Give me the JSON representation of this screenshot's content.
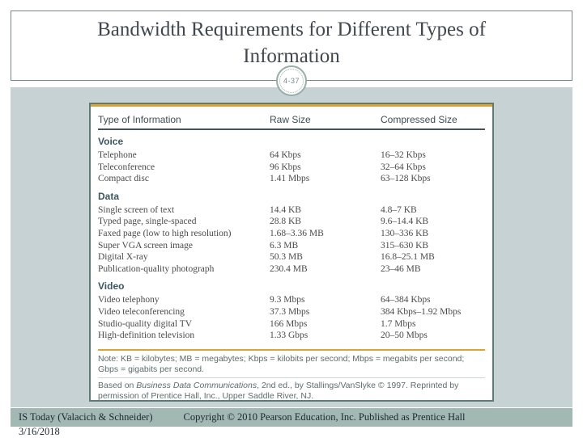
{
  "slide": {
    "title": "Bandwidth Requirements for Different Types of Information",
    "page_badge": "4-37"
  },
  "table": {
    "columns": [
      "Type of Information",
      "Raw Size",
      "Compressed Size"
    ],
    "sections": [
      {
        "name": "Voice",
        "rows": [
          [
            "Telephone",
            "64 Kbps",
            "16–32 Kbps"
          ],
          [
            "Teleconference",
            "96 Kbps",
            "32–64 Kbps"
          ],
          [
            "Compact disc",
            "1.41 Mbps",
            "63–128 Kbps"
          ]
        ]
      },
      {
        "name": "Data",
        "rows": [
          [
            "Single screen of text",
            "14.4 KB",
            "4.8–7 KB"
          ],
          [
            "Typed page, single-spaced",
            "28.8 KB",
            "9.6–14.4 KB"
          ],
          [
            "Faxed page (low to high resolution)",
            "1.68–3.36 MB",
            "130–336 KB"
          ],
          [
            "Super VGA screen image",
            "6.3 MB",
            "315–630 KB"
          ],
          [
            "Digital X-ray",
            "50.3 MB",
            "16.8–25.1 MB"
          ],
          [
            "Publication-quality photograph",
            "230.4 MB",
            "23–46 MB"
          ]
        ]
      },
      {
        "name": "Video",
        "rows": [
          [
            "Video telephony",
            "9.3 Mbps",
            "64–384 Kbps"
          ],
          [
            "Video teleconferencing",
            "37.3 Mbps",
            "384 Kbps–1.92 Mbps"
          ],
          [
            "Studio-quality digital TV",
            "166 Mbps",
            "1.7 Mbps"
          ],
          [
            "High-definition television",
            "1.33 Gbps",
            "20–50 Mbps"
          ]
        ]
      }
    ],
    "note": "Note: KB = kilobytes; MB = megabytes; Kbps = kilobits per second; Mbps = megabits per second; Gbps = gigabits per second.",
    "source_prefix": "Based on ",
    "source_italic": "Business Data Communications",
    "source_suffix": ", 2nd ed., by Stallings/VanSlyke © 1997. Reprinted by permission of Prentice Hall, Inc., Upper Saddle River, NJ."
  },
  "footer": {
    "left": "IS Today (Valacich & Schneider)",
    "copyright": "Copyright © 2010 Pearson Education, Inc. Published as Prentice Hall",
    "date": "3/16/2018"
  },
  "colors": {
    "accent_gold": "#d9a43c",
    "content_band": "#c6d2d3",
    "footer_band": "#a2b8b2",
    "table_border": "#5d7a73",
    "section_text": "#3c5660",
    "title_text": "#41474f"
  }
}
